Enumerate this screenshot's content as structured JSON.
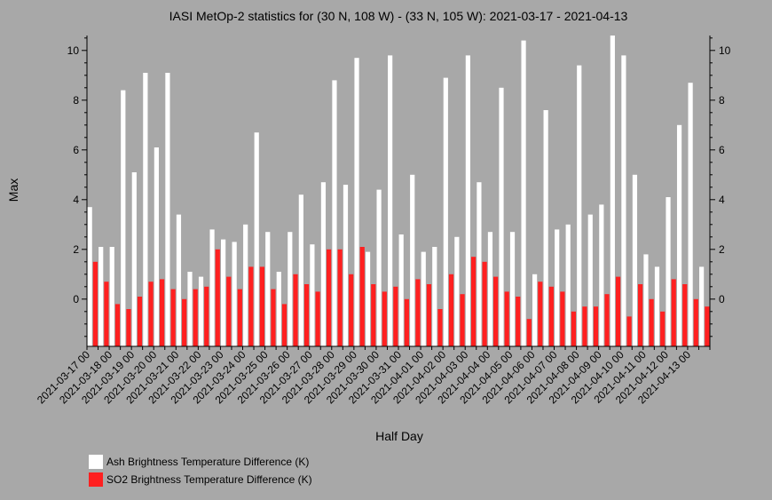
{
  "chart_data": {
    "type": "bar",
    "title": "IASI MetOp-2 statistics for (30 N, 108 W) - (33 N, 105 W): 2021-03-17 - 2021-04-13",
    "xlabel": "Half Day",
    "ylabel": "Max",
    "ylim": [
      -1.9,
      10.6
    ],
    "yticks": [
      0,
      2,
      4,
      6,
      8,
      10
    ],
    "grid": false,
    "legend_position": "bottom-left",
    "categories": [
      "2021-03-17 00",
      "2021-03-17 12",
      "2021-03-18 00",
      "2021-03-18 12",
      "2021-03-19 00",
      "2021-03-19 12",
      "2021-03-20 00",
      "2021-03-20 12",
      "2021-03-21 00",
      "2021-03-21 12",
      "2021-03-22 00",
      "2021-03-22 12",
      "2021-03-23 00",
      "2021-03-23 12",
      "2021-03-24 00",
      "2021-03-24 12",
      "2021-03-25 00",
      "2021-03-25 12",
      "2021-03-26 00",
      "2021-03-26 12",
      "2021-03-27 00",
      "2021-03-27 12",
      "2021-03-28 00",
      "2021-03-28 12",
      "2021-03-29 00",
      "2021-03-29 12",
      "2021-03-30 00",
      "2021-03-30 12",
      "2021-03-31 00",
      "2021-03-31 12",
      "2021-04-01 00",
      "2021-04-01 12",
      "2021-04-02 00",
      "2021-04-02 12",
      "2021-04-03 00",
      "2021-04-03 12",
      "2021-04-04 00",
      "2021-04-04 12",
      "2021-04-05 00",
      "2021-04-05 12",
      "2021-04-06 00",
      "2021-04-06 12",
      "2021-04-07 00",
      "2021-04-07 12",
      "2021-04-08 00",
      "2021-04-08 12",
      "2021-04-09 00",
      "2021-04-09 12",
      "2021-04-10 00",
      "2021-04-10 12",
      "2021-04-11 00",
      "2021-04-11 12",
      "2021-04-12 00",
      "2021-04-12 12",
      "2021-04-13 00",
      "2021-04-13 12"
    ],
    "x_tick_labels": [
      "2021-03-17 00",
      "2021-03-18 00",
      "2021-03-19 00",
      "2021-03-20 00",
      "2021-03-21 00",
      "2021-03-22 00",
      "2021-03-23 00",
      "2021-03-24 00",
      "2021-03-25 00",
      "2021-03-26 00",
      "2021-03-27 00",
      "2021-03-28 00",
      "2021-03-29 00",
      "2021-03-30 00",
      "2021-03-31 00",
      "2021-04-01 00",
      "2021-04-02 00",
      "2021-04-03 00",
      "2021-04-04 00",
      "2021-04-05 00",
      "2021-04-06 00",
      "2021-04-07 00",
      "2021-04-08 00",
      "2021-04-09 00",
      "2021-04-10 00",
      "2021-04-11 00",
      "2021-04-12 00",
      "2021-04-13 00"
    ],
    "series": [
      {
        "name": "Ash Brightness Temperature Difference (K)",
        "color": "#ffffff",
        "values": [
          3.7,
          2.1,
          2.1,
          8.4,
          5.1,
          9.1,
          6.1,
          9.1,
          3.4,
          1.1,
          0.9,
          2.8,
          2.4,
          2.3,
          3.0,
          6.7,
          2.7,
          1.1,
          2.7,
          4.2,
          2.2,
          4.7,
          8.8,
          4.6,
          9.7,
          1.9,
          4.4,
          9.8,
          2.6,
          5.0,
          1.9,
          2.1,
          8.9,
          2.5,
          9.8,
          4.7,
          2.7,
          8.5,
          2.7,
          10.4,
          1.0,
          7.6,
          2.8,
          3.0,
          9.4,
          3.4,
          3.8,
          10.6,
          9.8,
          5.0,
          1.8,
          1.3,
          4.1,
          7.0,
          8.7,
          1.3
        ]
      },
      {
        "name": "SO2 Brightness Temperature Difference (K)",
        "color": "#ff2020",
        "values": [
          1.5,
          0.7,
          -0.2,
          -0.4,
          0.1,
          0.7,
          0.8,
          0.4,
          0.0,
          0.4,
          0.5,
          2.0,
          0.9,
          0.4,
          1.3,
          1.3,
          0.4,
          -0.2,
          1.0,
          0.6,
          0.3,
          2.0,
          2.0,
          1.0,
          2.1,
          0.6,
          0.3,
          0.5,
          0.0,
          0.8,
          0.6,
          -0.4,
          1.0,
          0.2,
          1.7,
          1.5,
          0.9,
          0.3,
          0.1,
          -0.8,
          0.7,
          0.5,
          0.3,
          -0.5,
          -0.3,
          -0.3,
          0.2,
          0.9,
          -0.7,
          0.6,
          0.0,
          -0.5,
          0.8,
          0.6,
          0.0,
          -0.3
        ]
      }
    ]
  },
  "legend": [
    {
      "label": "Ash Brightness Temperature Difference (K)",
      "color": "#ffffff"
    },
    {
      "label": "SO2 Brightness Temperature Difference (K)",
      "color": "#ff2020"
    }
  ]
}
